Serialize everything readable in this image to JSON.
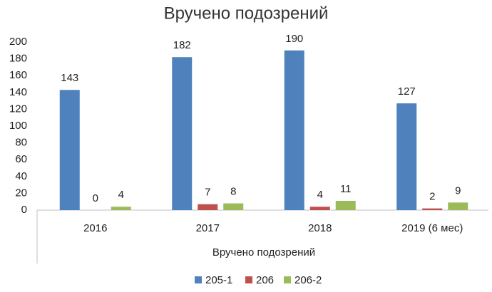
{
  "chart_data": {
    "type": "bar",
    "title": "Вручено подозрений",
    "x_label": "Вручено подозрений",
    "categories": [
      "2016",
      "2017",
      "2018",
      "2019 (6 мес)"
    ],
    "series": [
      {
        "name": "205-1",
        "color": "#4f81bd",
        "values": [
          143,
          182,
          190,
          127
        ]
      },
      {
        "name": "206",
        "color": "#c0504d",
        "values": [
          0,
          7,
          4,
          2
        ]
      },
      {
        "name": "206-2",
        "color": "#9bbb59",
        "values": [
          4,
          8,
          11,
          9
        ]
      }
    ],
    "ylim": [
      0,
      200
    ],
    "yticks": [
      0,
      20,
      40,
      60,
      80,
      100,
      120,
      140,
      160,
      180,
      200
    ],
    "grid": false,
    "legend": "bottom",
    "data_labels": true
  }
}
